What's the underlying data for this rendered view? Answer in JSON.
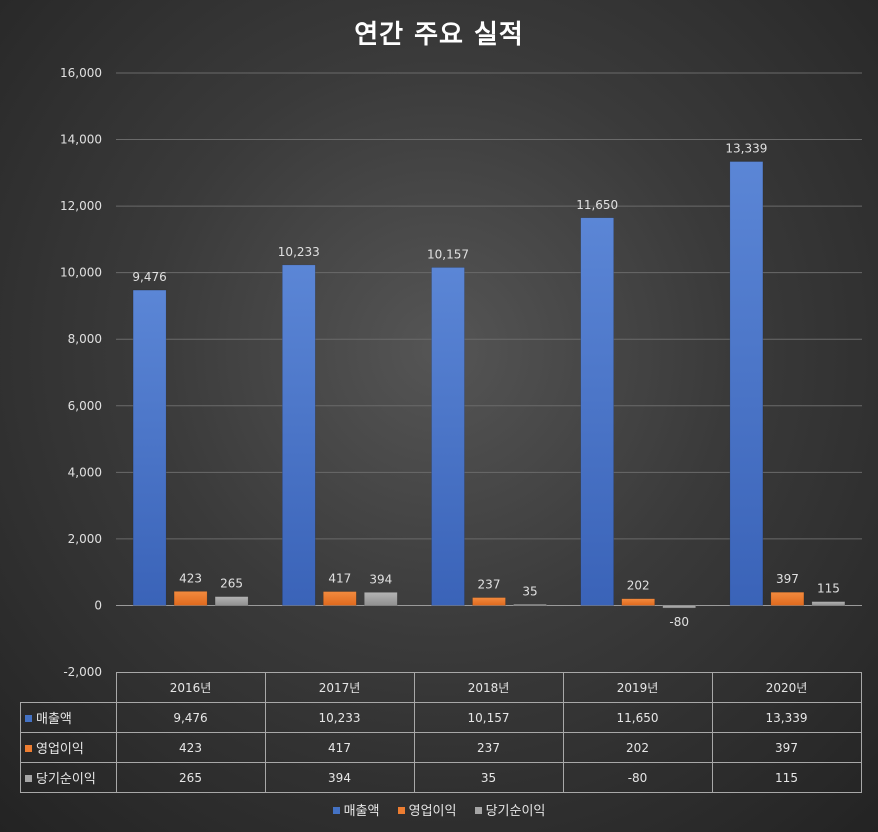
{
  "chart_data": {
    "type": "bar",
    "title": "연간 주요 실적",
    "categories": [
      "2016년",
      "2017년",
      "2018년",
      "2019년",
      "2020년"
    ],
    "series": [
      {
        "name": "매출액",
        "values": [
          9476,
          10233,
          10157,
          11650,
          13339
        ],
        "labels": [
          "9,476",
          "10,233",
          "10,157",
          "11,650",
          "13,339"
        ],
        "color": "#4472c4"
      },
      {
        "name": "영업이익",
        "values": [
          423,
          417,
          237,
          202,
          397
        ],
        "labels": [
          "423",
          "417",
          "237",
          "202",
          "397"
        ],
        "color": "#ed7d31"
      },
      {
        "name": "당기순이익",
        "values": [
          265,
          394,
          35,
          -80,
          115
        ],
        "labels": [
          "265",
          "394",
          "35",
          "-80",
          "115"
        ],
        "color": "#a5a5a5"
      }
    ],
    "ylim": [
      -2000,
      16000
    ],
    "yticks": [
      "-2,000",
      "0",
      "2,000",
      "4,000",
      "6,000",
      "8,000",
      "10,000",
      "12,000",
      "14,000",
      "16,000"
    ],
    "grid": true,
    "legend_position": "bottom",
    "data_table": true
  }
}
